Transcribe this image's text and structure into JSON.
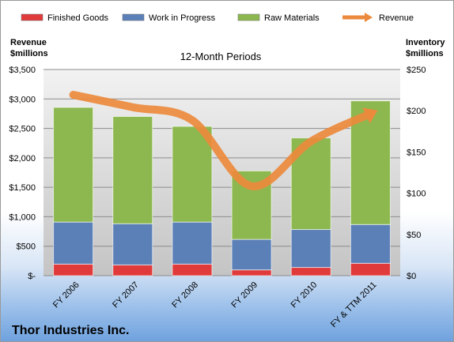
{
  "chart_data": {
    "type": "bar",
    "stacked": true,
    "title": "12-Month Periods",
    "company": "Thor Industries Inc.",
    "categories": [
      "FY 2006",
      "FY 2007",
      "FY 2008",
      "FY 2009",
      "FY 2010",
      "FY & TTM 2011"
    ],
    "y_left": {
      "label_line1": "Revenue",
      "label_line2": "$millions",
      "range": [
        0,
        3500
      ],
      "ticks": [
        0,
        500,
        1000,
        1500,
        2000,
        2500,
        3000,
        3500
      ],
      "tick_labels": [
        "$-",
        "$500",
        "$1,000",
        "$1,500",
        "$2,000",
        "$2,500",
        "$3,000",
        "$3,500"
      ]
    },
    "y_right": {
      "label_line1": "Inventory",
      "label_line2": "$millions",
      "range": [
        0,
        250
      ],
      "ticks": [
        0,
        50,
        100,
        150,
        200,
        250
      ],
      "tick_labels": [
        "$0",
        "$50",
        "$100",
        "$150",
        "$200",
        "$250"
      ]
    },
    "series": [
      {
        "name": "Finished Goods",
        "axis": "right",
        "color": "#e03a3a",
        "values": [
          14,
          13,
          14,
          7,
          10,
          15
        ]
      },
      {
        "name": "Work in Progress",
        "axis": "right",
        "color": "#5b80b8",
        "values": [
          51,
          50,
          51,
          37,
          46,
          47
        ]
      },
      {
        "name": "Raw Materials",
        "axis": "right",
        "color": "#8db850",
        "values": [
          139,
          130,
          116,
          83,
          111,
          150
        ]
      },
      {
        "name": "Revenue",
        "axis": "left",
        "type": "line",
        "color": "#eb8a3c",
        "values": [
          3070,
          2860,
          2640,
          1520,
          2280,
          2750
        ]
      }
    ],
    "grid": true,
    "legend_position": "top"
  }
}
